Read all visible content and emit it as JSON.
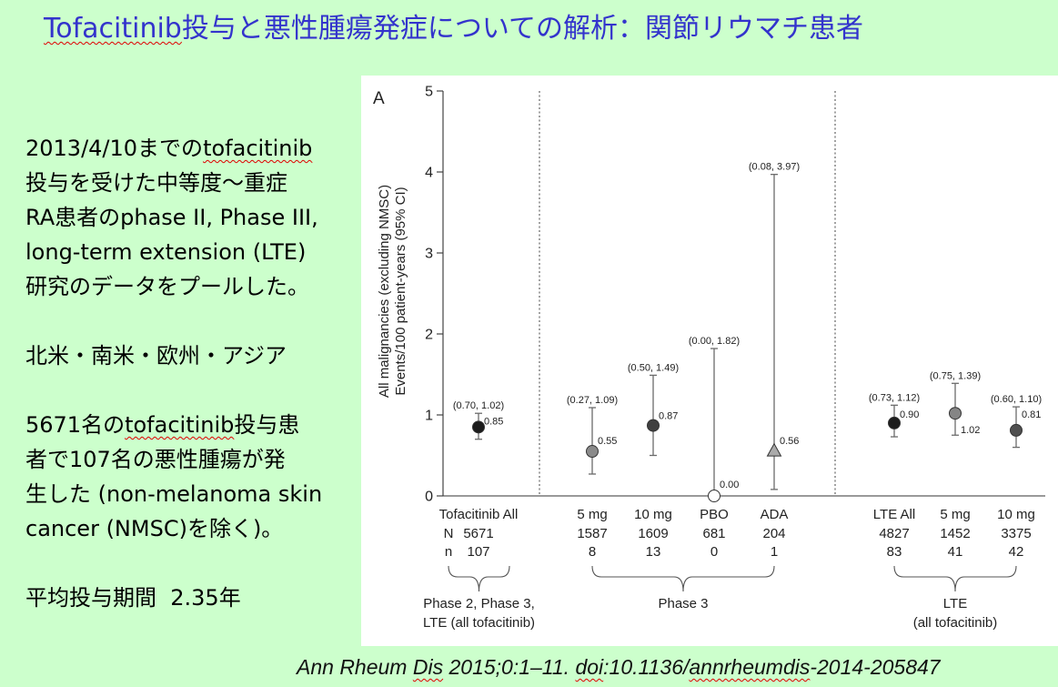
{
  "theme": {
    "background": "#ccffcc",
    "title_color": "#3333cc",
    "text_color": "#000000",
    "chart_background": "#ffffff",
    "spellcheck_underline": "#e00000"
  },
  "title": {
    "segments": [
      "Tofacitinib",
      "投与と悪性腫瘍発症についての解析：関節リウマチ患者"
    ]
  },
  "summary": {
    "pooled": {
      "line1": [
        "2013/4/10までの",
        "tofacitinib"
      ],
      "line2": "投与を受けた中等度～重症",
      "line3": "RA患者のphase II, Phase III,",
      "line4": "long-term extension (LTE)",
      "line5": "研究のデータをプールした。"
    },
    "regions": "北米・南米・欧州・アジア",
    "events": {
      "line1": [
        "5671名の",
        "tofacitinib",
        "投与患"
      ],
      "line2": "者で107名の悪性腫瘍が発",
      "line3": "生した (non-melanoma skin",
      "line4": "cancer (NMSC)を除く)。"
    },
    "duration": "平均投与期間  2.35年"
  },
  "citation": {
    "segments": [
      "Ann Rheum ",
      "Dis",
      " 2015;0:1–11. ",
      "doi",
      ":10.1136/",
      "annrheumdis",
      "-2014-205847"
    ]
  },
  "chart_data": {
    "type": "scatter",
    "panel_label": "A",
    "ylabel": [
      "All malignancies (excluding NMSC)",
      "Events/100 patient-years (95% CI)"
    ],
    "ylim": [
      0,
      5
    ],
    "yticks": [
      0,
      1,
      2,
      3,
      4,
      5
    ],
    "grid": false,
    "row_labels": [
      "N",
      "n"
    ],
    "points": [
      {
        "category": "Tofacitinib All",
        "N": 5671,
        "n": 107,
        "estimate": 0.85,
        "ci": [
          0.7,
          1.02
        ],
        "estimate_label": "0.85",
        "ci_label": "(0.70, 1.02)",
        "marker": "circle",
        "color": "#1c1c1c"
      },
      {
        "category": "5 mg",
        "N": 1587,
        "n": 8,
        "estimate": 0.55,
        "ci": [
          0.27,
          1.09
        ],
        "estimate_label": "0.55",
        "ci_label": "(0.27, 1.09)",
        "marker": "circle",
        "color": "#8a8a8a"
      },
      {
        "category": "10 mg",
        "N": 1609,
        "n": 13,
        "estimate": 0.87,
        "ci": [
          0.5,
          1.49
        ],
        "estimate_label": "0.87",
        "ci_label": "(0.50, 1.49)",
        "marker": "circle",
        "color": "#404040"
      },
      {
        "category": "PBO",
        "N": 681,
        "n": 0,
        "estimate": 0.0,
        "ci": [
          0.0,
          1.82
        ],
        "estimate_label": "0.00",
        "ci_label": "(0.00, 1.82)",
        "marker": "circle",
        "color": "#ffffff"
      },
      {
        "category": "ADA",
        "N": 204,
        "n": 1,
        "estimate": 0.56,
        "ci": [
          0.08,
          3.97
        ],
        "estimate_label": "0.56",
        "ci_label": "(0.08, 3.97)",
        "marker": "triangle",
        "color": "#aaaaaa"
      },
      {
        "category": "LTE All",
        "N": 4827,
        "n": 83,
        "estimate": 0.9,
        "ci": [
          0.73,
          1.12
        ],
        "estimate_label": "0.90",
        "ci_label": "(0.73, 1.12)",
        "marker": "circle",
        "color": "#1c1c1c"
      },
      {
        "category": "5 mg",
        "N": 1452,
        "n": 41,
        "estimate": 1.02,
        "ci": [
          0.75,
          1.39
        ],
        "estimate_label": "1.02",
        "ci_label": "(0.75, 1.39)",
        "marker": "circle",
        "color": "#858585"
      },
      {
        "category": "10 mg",
        "N": 3375,
        "n": 42,
        "estimate": 0.81,
        "ci": [
          0.6,
          1.1
        ],
        "estimate_label": "0.81",
        "ci_label": "(0.60, 1.10)",
        "marker": "circle",
        "color": "#4f4f4f"
      }
    ],
    "groups": [
      {
        "label": [
          "Phase 2, Phase 3,",
          "LTE (all tofacitinib)"
        ],
        "points": [
          0
        ]
      },
      {
        "label": [
          "Phase 3"
        ],
        "points": [
          1,
          2,
          3,
          4
        ]
      },
      {
        "label": [
          "LTE",
          "(all tofacitinib)"
        ],
        "points": [
          5,
          6,
          7
        ]
      }
    ]
  }
}
